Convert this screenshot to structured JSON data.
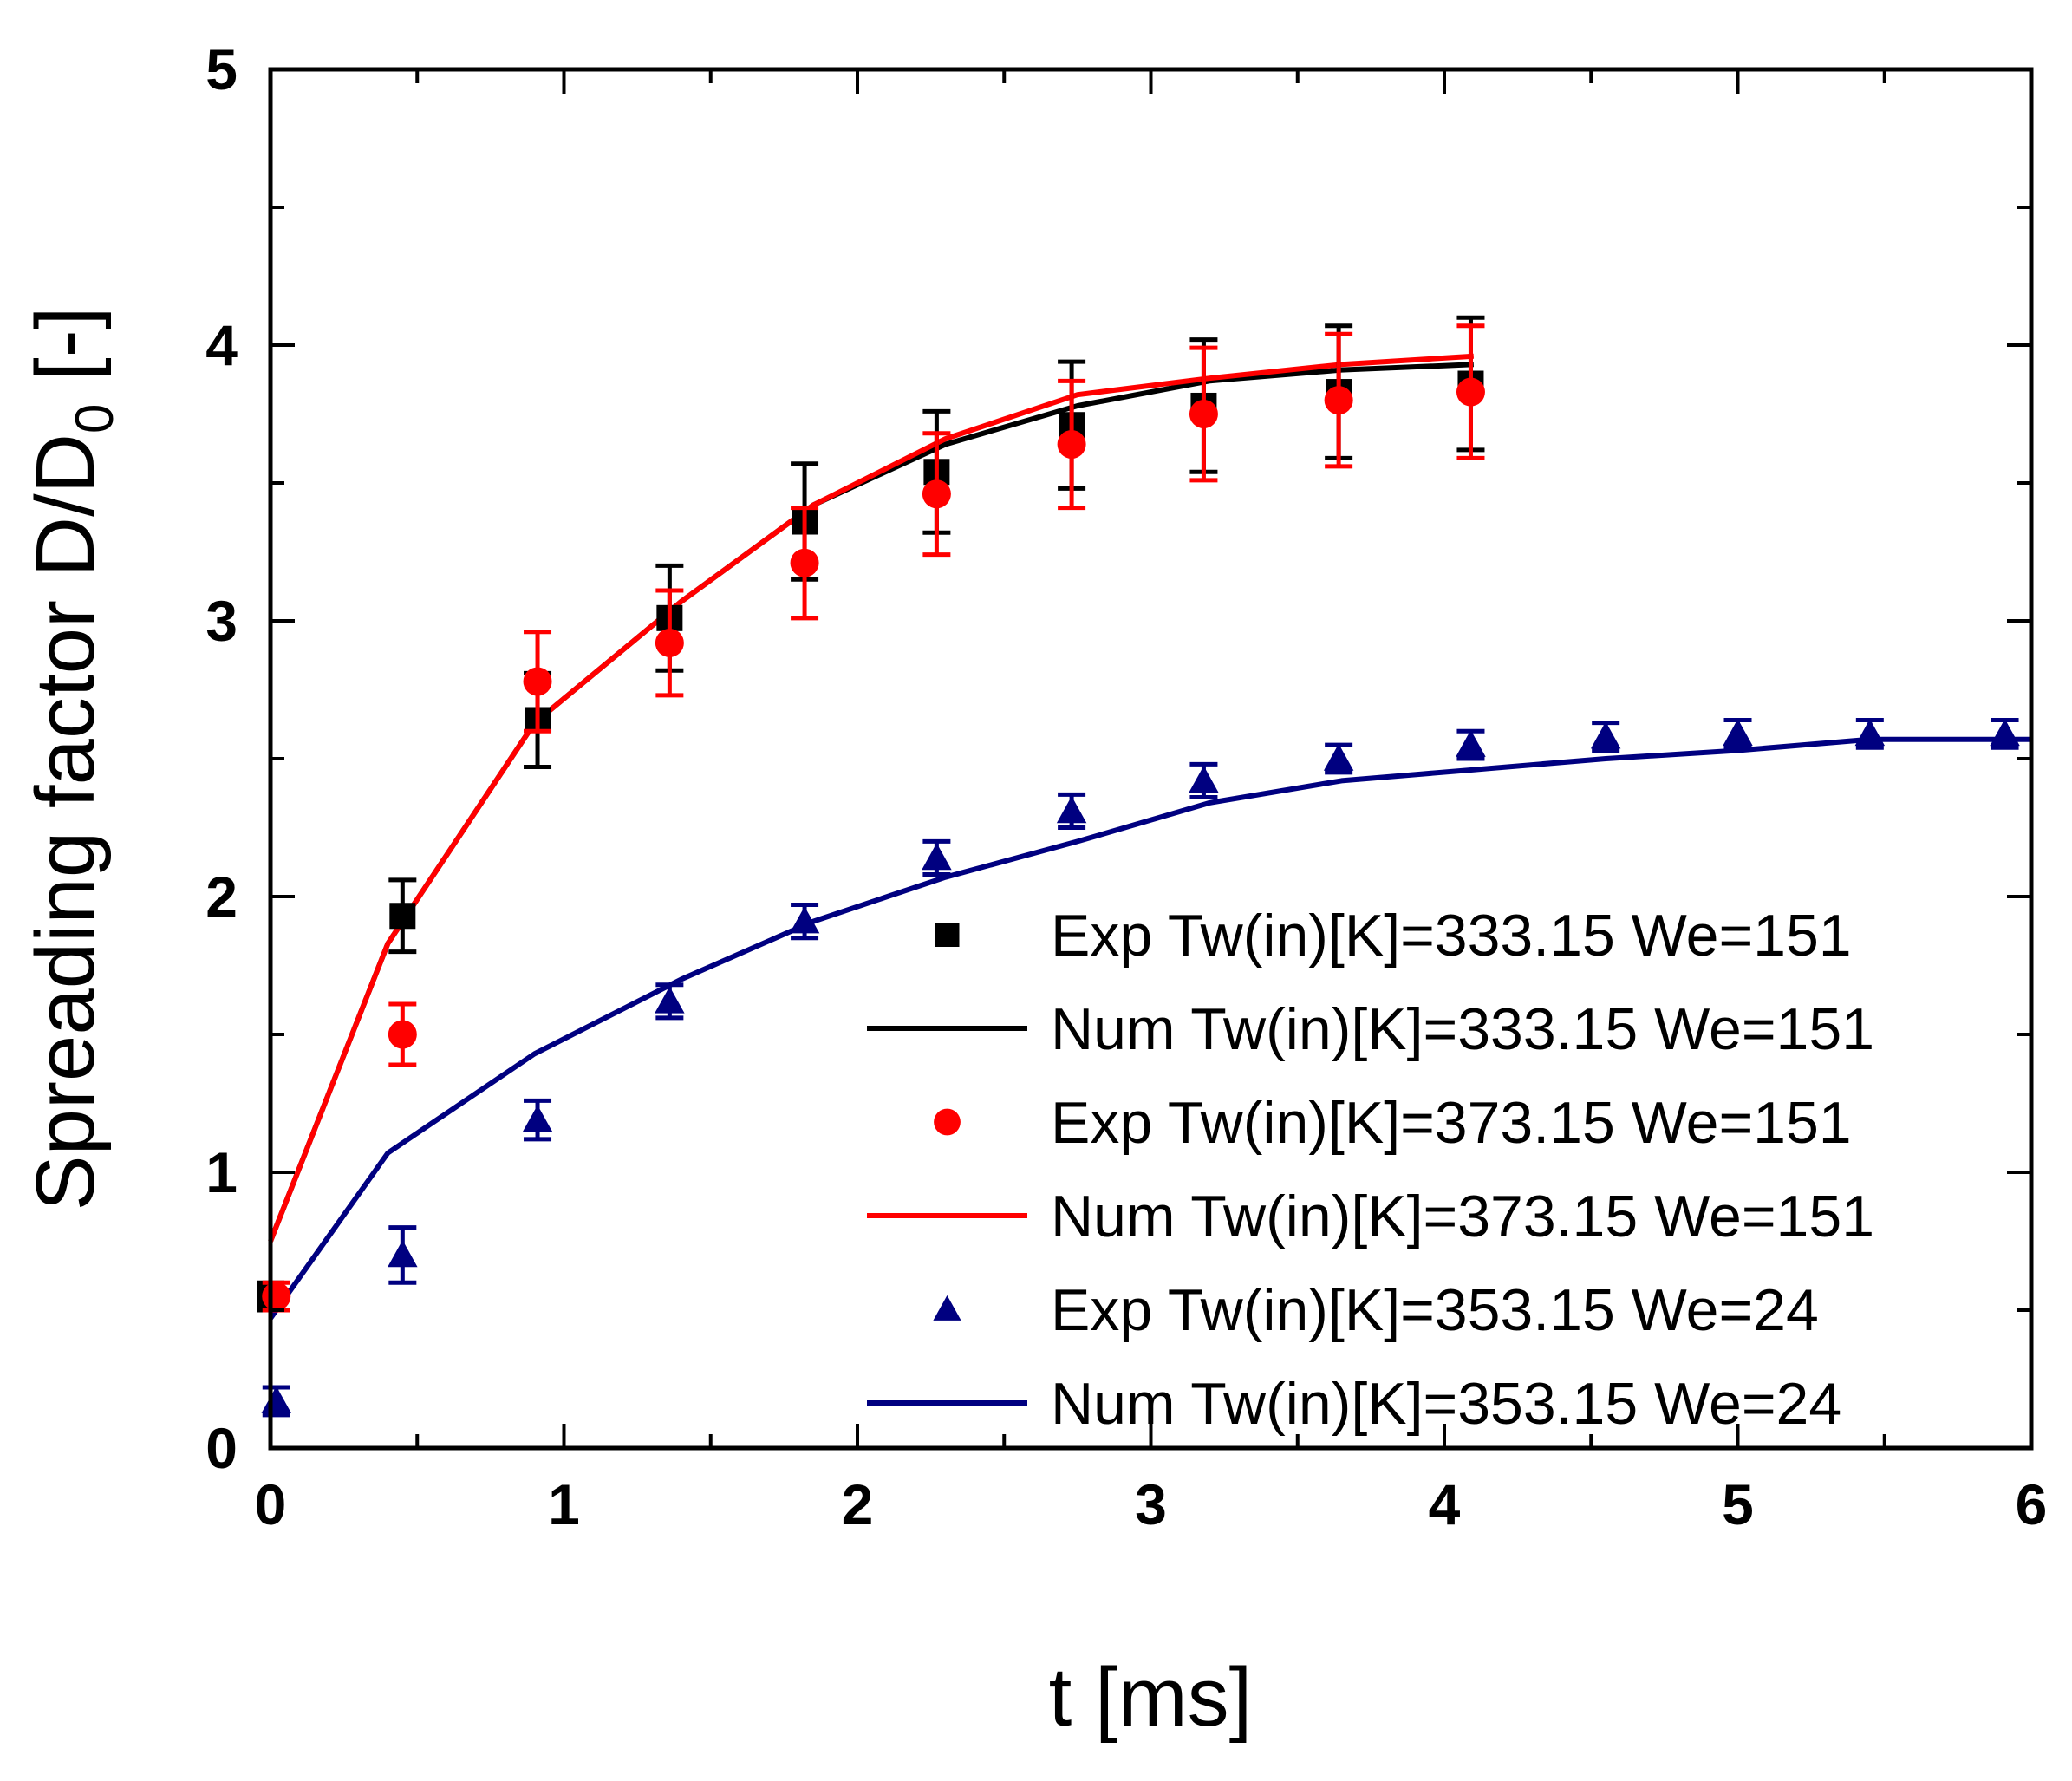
{
  "chart_data": {
    "type": "scatter",
    "title": "",
    "xlabel": "t [ms]",
    "ylabel": {
      "main": "Spreading factor D/D",
      "sub": "0",
      "suffix": " [-]"
    },
    "xlim": [
      0,
      6
    ],
    "ylim": [
      0,
      5
    ],
    "xticks": [
      "0",
      "1",
      "2",
      "3",
      "4",
      "5",
      "6"
    ],
    "yticks": [
      "0",
      "1",
      "2",
      "3",
      "4",
      "5"
    ],
    "grid": false,
    "legend_position": "bottom-right",
    "series": [
      {
        "name": "Exp Tw(in)[K]=333.15 We=151",
        "kind": "exp",
        "marker": "square",
        "color": "#000000",
        "points": [
          {
            "x": 0.0,
            "y": 0.55,
            "err": 0.05
          },
          {
            "x": 0.45,
            "y": 1.93,
            "err": 0.13
          },
          {
            "x": 0.91,
            "y": 2.64,
            "err": 0.17
          },
          {
            "x": 1.36,
            "y": 3.01,
            "err": 0.19
          },
          {
            "x": 1.82,
            "y": 3.36,
            "err": 0.21
          },
          {
            "x": 2.27,
            "y": 3.54,
            "err": 0.22
          },
          {
            "x": 2.73,
            "y": 3.71,
            "err": 0.23
          },
          {
            "x": 3.18,
            "y": 3.78,
            "err": 0.24
          },
          {
            "x": 3.64,
            "y": 3.83,
            "err": 0.24
          },
          {
            "x": 4.09,
            "y": 3.86,
            "err": 0.24
          }
        ]
      },
      {
        "name": "Num Tw(in)[K]=333.15 We=151",
        "kind": "num",
        "color": "#000000",
        "points": [
          {
            "x": 0.0,
            "y": 0.75
          },
          {
            "x": 0.4,
            "y": 1.83
          },
          {
            "x": 0.9,
            "y": 2.63
          },
          {
            "x": 1.4,
            "y": 3.07
          },
          {
            "x": 1.85,
            "y": 3.42
          },
          {
            "x": 2.3,
            "y": 3.64
          },
          {
            "x": 2.75,
            "y": 3.78
          },
          {
            "x": 3.2,
            "y": 3.87
          },
          {
            "x": 3.65,
            "y": 3.91
          },
          {
            "x": 4.1,
            "y": 3.93
          }
        ]
      },
      {
        "name": "Exp Tw(in)[K]=373.15 We=151",
        "kind": "exp",
        "marker": "circle",
        "color": "#ff0000",
        "points": [
          {
            "x": 0.02,
            "y": 0.55,
            "err": 0.05
          },
          {
            "x": 0.45,
            "y": 1.5,
            "err": 0.11
          },
          {
            "x": 0.91,
            "y": 2.78,
            "err": 0.18
          },
          {
            "x": 1.36,
            "y": 2.92,
            "err": 0.19
          },
          {
            "x": 1.82,
            "y": 3.21,
            "err": 0.2
          },
          {
            "x": 2.27,
            "y": 3.46,
            "err": 0.22
          },
          {
            "x": 2.73,
            "y": 3.64,
            "err": 0.23
          },
          {
            "x": 3.18,
            "y": 3.75,
            "err": 0.24
          },
          {
            "x": 3.64,
            "y": 3.8,
            "err": 0.24
          },
          {
            "x": 4.09,
            "y": 3.83,
            "err": 0.24
          }
        ]
      },
      {
        "name": "Num Tw(in)[K]=373.15 We=151",
        "kind": "num",
        "color": "#ff0000",
        "points": [
          {
            "x": 0.0,
            "y": 0.75
          },
          {
            "x": 0.4,
            "y": 1.83
          },
          {
            "x": 0.9,
            "y": 2.63
          },
          {
            "x": 1.4,
            "y": 3.07
          },
          {
            "x": 1.85,
            "y": 3.42
          },
          {
            "x": 2.3,
            "y": 3.66
          },
          {
            "x": 2.75,
            "y": 3.82
          },
          {
            "x": 3.2,
            "y": 3.88
          },
          {
            "x": 3.65,
            "y": 3.93
          },
          {
            "x": 4.1,
            "y": 3.96
          }
        ]
      },
      {
        "name": "Exp Tw(in)[K]=353.15 We=24",
        "kind": "exp",
        "marker": "triangle",
        "color": "#000080",
        "points": [
          {
            "x": 0.02,
            "y": 0.17,
            "err": 0.05
          },
          {
            "x": 0.45,
            "y": 0.7,
            "err": 0.1
          },
          {
            "x": 0.91,
            "y": 1.19,
            "err": 0.07
          },
          {
            "x": 1.36,
            "y": 1.62,
            "err": 0.06
          },
          {
            "x": 1.82,
            "y": 1.91,
            "err": 0.06
          },
          {
            "x": 2.27,
            "y": 2.14,
            "err": 0.06
          },
          {
            "x": 2.73,
            "y": 2.31,
            "err": 0.06
          },
          {
            "x": 3.18,
            "y": 2.42,
            "err": 0.06
          },
          {
            "x": 3.64,
            "y": 2.5,
            "err": 0.05
          },
          {
            "x": 4.09,
            "y": 2.55,
            "err": 0.05
          },
          {
            "x": 4.55,
            "y": 2.58,
            "err": 0.05
          },
          {
            "x": 5.0,
            "y": 2.59,
            "err": 0.05
          },
          {
            "x": 5.45,
            "y": 2.59,
            "err": 0.05
          },
          {
            "x": 5.91,
            "y": 2.59,
            "err": 0.05
          }
        ]
      },
      {
        "name": "Num Tw(in)[K]=353.15 We=24",
        "kind": "num",
        "color": "#000080",
        "points": [
          {
            "x": 0.0,
            "y": 0.47
          },
          {
            "x": 0.4,
            "y": 1.07
          },
          {
            "x": 0.9,
            "y": 1.43
          },
          {
            "x": 1.4,
            "y": 1.7
          },
          {
            "x": 1.85,
            "y": 1.91
          },
          {
            "x": 2.3,
            "y": 2.07
          },
          {
            "x": 2.75,
            "y": 2.2
          },
          {
            "x": 3.2,
            "y": 2.34
          },
          {
            "x": 3.65,
            "y": 2.42
          },
          {
            "x": 4.1,
            "y": 2.46
          },
          {
            "x": 4.55,
            "y": 2.5
          },
          {
            "x": 5.0,
            "y": 2.53
          },
          {
            "x": 5.45,
            "y": 2.57
          },
          {
            "x": 6.0,
            "y": 2.57
          }
        ]
      }
    ]
  }
}
